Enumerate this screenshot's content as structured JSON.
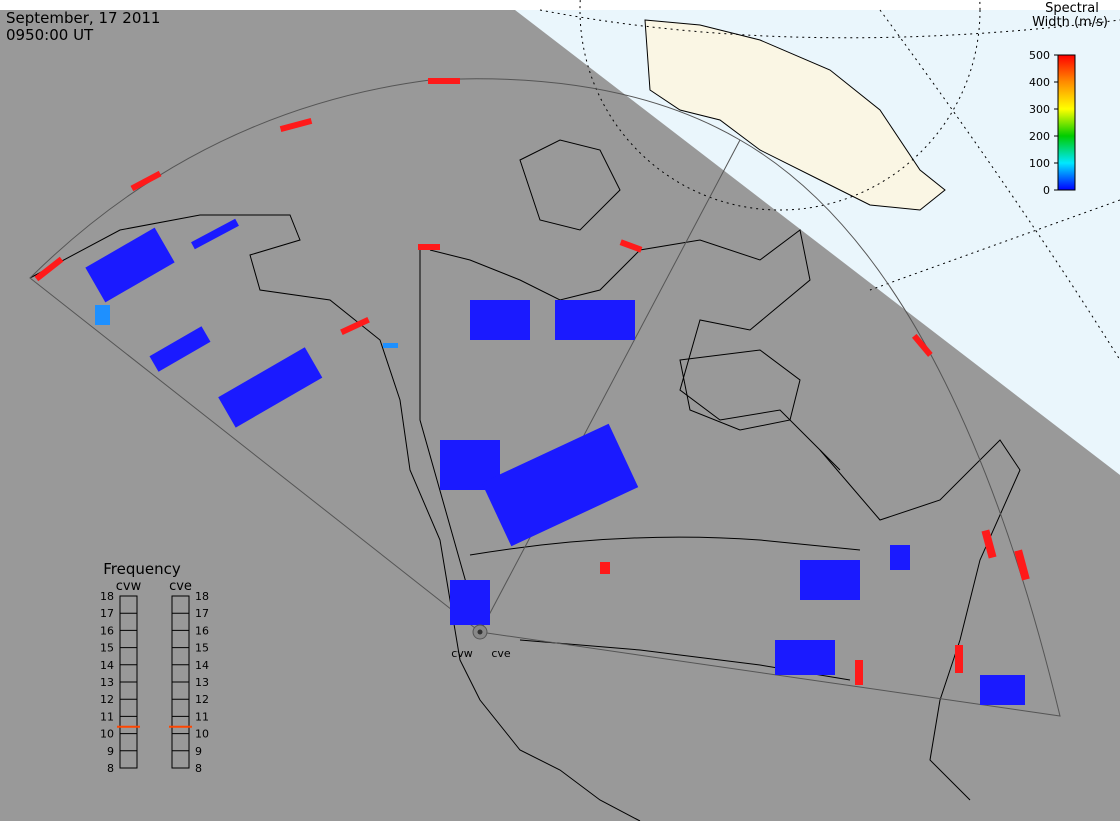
{
  "header": {
    "date": "September, 17 2011",
    "time": "0950:00 UT"
  },
  "colorbar": {
    "title_lines": [
      "Spectral",
      "Width (m/s)"
    ],
    "lim": [
      0,
      500
    ],
    "ticks": [
      0,
      100,
      200,
      300,
      400,
      500
    ],
    "colors": [
      "#0000ff",
      "#00e8ff",
      "#00cc00",
      "#ffff00",
      "#ff8c00",
      "#ff0000"
    ]
  },
  "frequency": {
    "title": "Frequency",
    "lim": [
      8,
      18
    ],
    "ticks": [
      8,
      9,
      10,
      11,
      12,
      13,
      14,
      15,
      16,
      17,
      18
    ],
    "marker_color": "#ff4500",
    "radars": [
      {
        "name": "cvw",
        "value": 10.4
      },
      {
        "name": "cve",
        "value": 10.4
      }
    ]
  },
  "map_labels": [
    "cvw",
    "cve"
  ]
}
